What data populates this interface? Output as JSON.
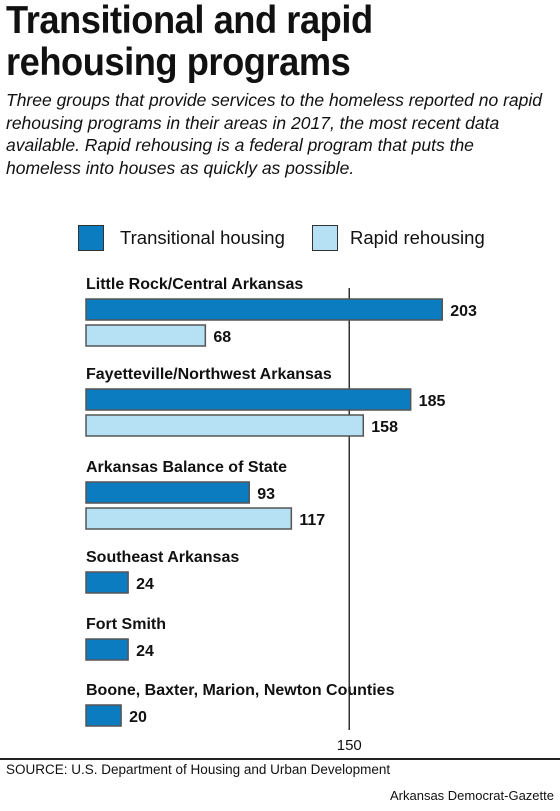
{
  "header": {
    "title": "Transitional and rapid rehousing programs",
    "subtitle": "Three groups that provide services to the homeless reported no rapid rehousing programs in their areas in 2017, the most recent data available. Rapid rehousing is a federal program that puts the homeless into houses as quickly as possible."
  },
  "colors": {
    "transitional": "#0a7cbf",
    "rapid": "#b6e0f4",
    "bar_border": "#555555",
    "reference_line": "#333333"
  },
  "legend": {
    "transitional_label": "Transitional housing",
    "rapid_label": "Rapid rehousing"
  },
  "chart_data": {
    "type": "bar",
    "orientation": "horizontal",
    "categories": [
      "Little Rock/Central Arkansas",
      "Fayetteville/Northwest Arkansas",
      "Arkansas Balance of State",
      "Southeast Arkansas",
      "Fort Smith",
      "Boone, Baxter, Marion, Newton Counties"
    ],
    "series": [
      {
        "name": "Transitional housing",
        "values": [
          203,
          185,
          93,
          24,
          24,
          20
        ]
      },
      {
        "name": "Rapid rehousing",
        "values": [
          68,
          158,
          117,
          null,
          null,
          null
        ]
      }
    ],
    "reference_line": {
      "value": 150,
      "label": "150"
    },
    "xlim": [
      0,
      210
    ],
    "data_labels": true,
    "legend_position": "top"
  },
  "footer": {
    "source": "SOURCE: U.S. Department of Housing and Urban Development",
    "credit": "Arkansas Democrat-Gazette"
  }
}
